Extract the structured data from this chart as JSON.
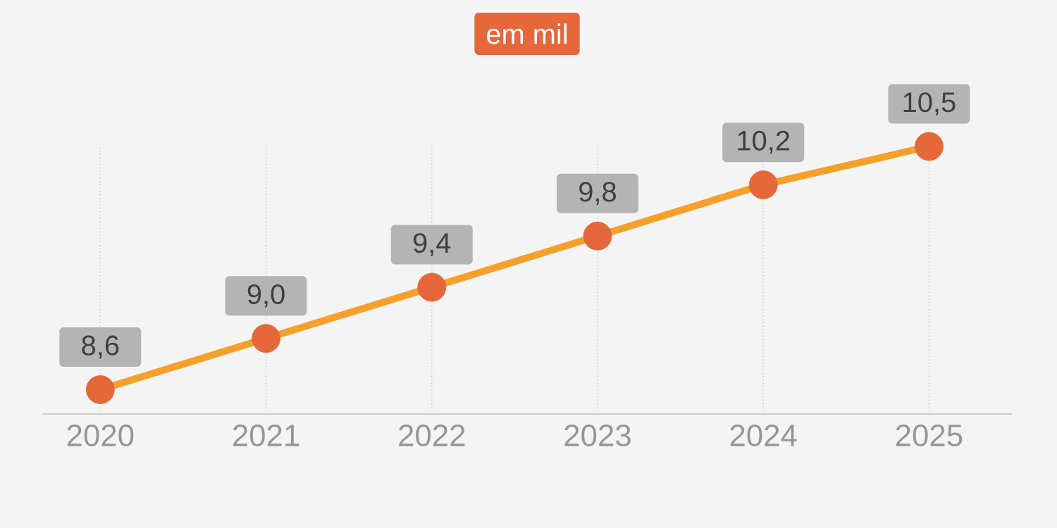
{
  "chart_data": {
    "type": "line",
    "categories": [
      "2020",
      "2021",
      "2022",
      "2023",
      "2024",
      "2025"
    ],
    "values": [
      8.6,
      9.0,
      9.4,
      9.8,
      10.2,
      10.5
    ],
    "value_labels": [
      "8,6",
      "9,0",
      "9,4",
      "9,8",
      "10,2",
      "10,5"
    ],
    "color": "#f5a02a",
    "colors": [
      "#e5673a",
      "#e5673a",
      "#e5673a",
      "#e5673a",
      "#e5673a",
      "#e5673a"
    ],
    "marker": "circle",
    "grid": "x",
    "tick_labels": "x",
    "annotations": [
      "em mil"
    ]
  }
}
